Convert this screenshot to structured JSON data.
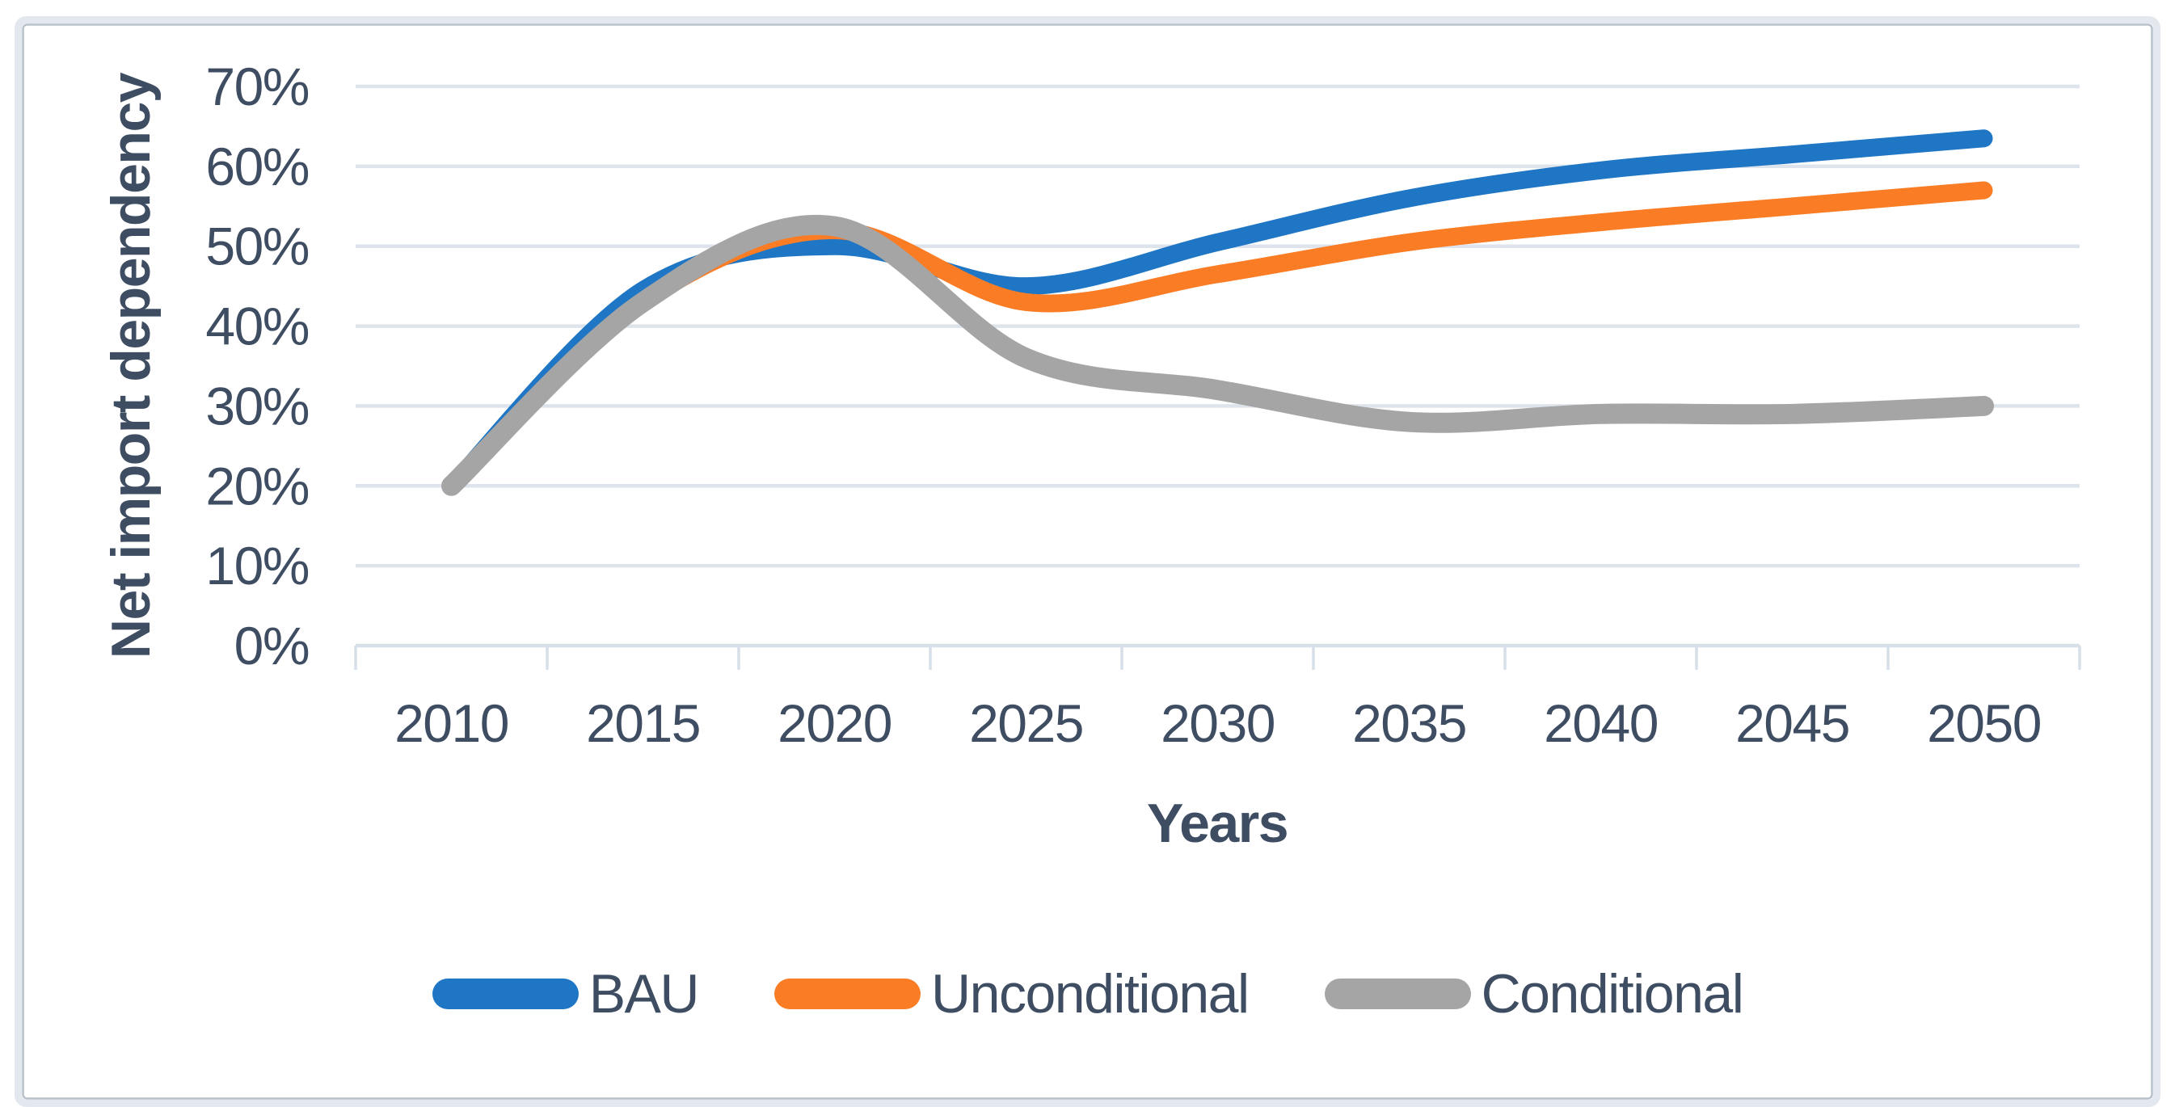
{
  "figure": {
    "background_color": "#FFFFFF",
    "frame_band_color": "#E2E8EE",
    "frame_inner_line_color": "#B7C1CA",
    "canvas_color": "#FFFFFF"
  },
  "chart_data": {
    "type": "line",
    "title": "",
    "xlabel": "Years",
    "ylabel": "Net import dependency",
    "categories": [
      "2010",
      "2015",
      "2020",
      "2025",
      "2030",
      "2035",
      "2040",
      "2045",
      "2050"
    ],
    "series": [
      {
        "name": "BAU",
        "color": "#1F76C5",
        "stroke_width": 22,
        "values": [
          20,
          44.5,
          50,
          45,
          50.5,
          56,
          59.5,
          61.5,
          63.5
        ]
      },
      {
        "name": "Unconditional",
        "color": "#FA7D26",
        "stroke_width": 22,
        "values": [
          20,
          43,
          52,
          43,
          46.5,
          50.5,
          53,
          55,
          57
        ]
      },
      {
        "name": "Conditional",
        "color": "#A5A5A5",
        "stroke_width": 25,
        "values": [
          20,
          43,
          52.5,
          36,
          32,
          28,
          29,
          29,
          30
        ]
      }
    ],
    "ylim": [
      0,
      70
    ],
    "ytick_step": 10,
    "ytick_labels": [
      "0%",
      "10%",
      "20%",
      "30%",
      "40%",
      "50%",
      "60%",
      "70%"
    ],
    "ytick_format": "percent",
    "grid": "horizontal-only",
    "gridline_color": "#DEE4EC",
    "axis_line_color": "#D7DFE8",
    "axis_text_color": "#3E4D62",
    "legend_position": "bottom-center",
    "smooth_lines": true
  }
}
